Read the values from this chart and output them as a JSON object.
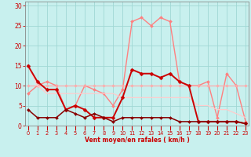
{
  "bg_color": "#c8f0ee",
  "grid_color": "#a0d8d4",
  "xlabel": "Vent moyen/en rafales ( km/h )",
  "xlim": [
    -0.3,
    23.3
  ],
  "ylim": [
    0,
    31
  ],
  "yticks": [
    0,
    5,
    10,
    15,
    20,
    25,
    30
  ],
  "xticks": [
    0,
    1,
    2,
    3,
    4,
    5,
    6,
    7,
    8,
    9,
    10,
    11,
    12,
    13,
    14,
    15,
    16,
    17,
    18,
    19,
    20,
    21,
    22,
    23
  ],
  "lines": [
    {
      "x": [
        0,
        1,
        2,
        3,
        4,
        5,
        6,
        7,
        8,
        9,
        10,
        11,
        12,
        13,
        14,
        15,
        16,
        17,
        18,
        19,
        20,
        21,
        22,
        23
      ],
      "y": [
        8,
        10,
        11,
        10,
        4,
        5,
        10,
        9,
        8,
        5,
        9,
        26,
        27,
        25,
        27,
        26,
        11,
        10,
        10,
        11,
        2,
        13,
        10,
        1
      ],
      "color": "#ff8080",
      "lw": 1.0,
      "marker": "D",
      "ms": 2.0
    },
    {
      "x": [
        0,
        1,
        2,
        3,
        4,
        5,
        6,
        7,
        8,
        9,
        10,
        11,
        12,
        13,
        14,
        15,
        16,
        17,
        18,
        19,
        20,
        21,
        22,
        23
      ],
      "y": [
        10,
        10,
        10,
        10,
        10,
        10,
        10,
        10,
        10,
        10,
        10,
        10,
        10,
        10,
        10,
        10,
        10,
        10,
        10,
        10,
        10,
        10,
        10,
        10
      ],
      "color": "#ffaaaa",
      "lw": 0.9,
      "marker": "D",
      "ms": 1.8
    },
    {
      "x": [
        0,
        1,
        2,
        3,
        4,
        5,
        6,
        7,
        8,
        9,
        10,
        11,
        12,
        13,
        14,
        15,
        16,
        17,
        18,
        19,
        20,
        21,
        22,
        23
      ],
      "y": [
        15,
        10,
        8,
        8,
        8,
        8,
        8,
        8,
        8,
        8,
        7,
        7,
        7,
        7,
        7,
        7,
        7,
        7,
        5,
        5,
        4,
        4,
        3,
        2
      ],
      "color": "#ffcccc",
      "lw": 0.9,
      "marker": null,
      "ms": 0
    },
    {
      "x": [
        0,
        1,
        2,
        3,
        4,
        5,
        6,
        7,
        8,
        9,
        10,
        11,
        12,
        13,
        14,
        15,
        16,
        17,
        18,
        19,
        20,
        21,
        22,
        23
      ],
      "y": [
        15,
        11,
        9,
        9,
        4,
        5,
        4,
        2,
        2,
        2,
        7,
        14,
        13,
        13,
        12,
        13,
        11,
        10,
        1,
        1,
        1,
        1,
        1,
        0.5
      ],
      "color": "#cc0000",
      "lw": 1.4,
      "marker": "D",
      "ms": 2.5
    },
    {
      "x": [
        0,
        1,
        2,
        3,
        4,
        5,
        6,
        7,
        8,
        9,
        10,
        11,
        12,
        13,
        14,
        15,
        16,
        17,
        18,
        19,
        20,
        21,
        22,
        23
      ],
      "y": [
        4,
        2,
        2,
        2,
        4,
        3,
        2,
        3,
        2,
        1,
        2,
        2,
        2,
        2,
        2,
        2,
        1,
        1,
        1,
        1,
        1,
        1,
        1,
        0.5
      ],
      "color": "#880000",
      "lw": 1.1,
      "marker": "D",
      "ms": 2.0
    }
  ]
}
